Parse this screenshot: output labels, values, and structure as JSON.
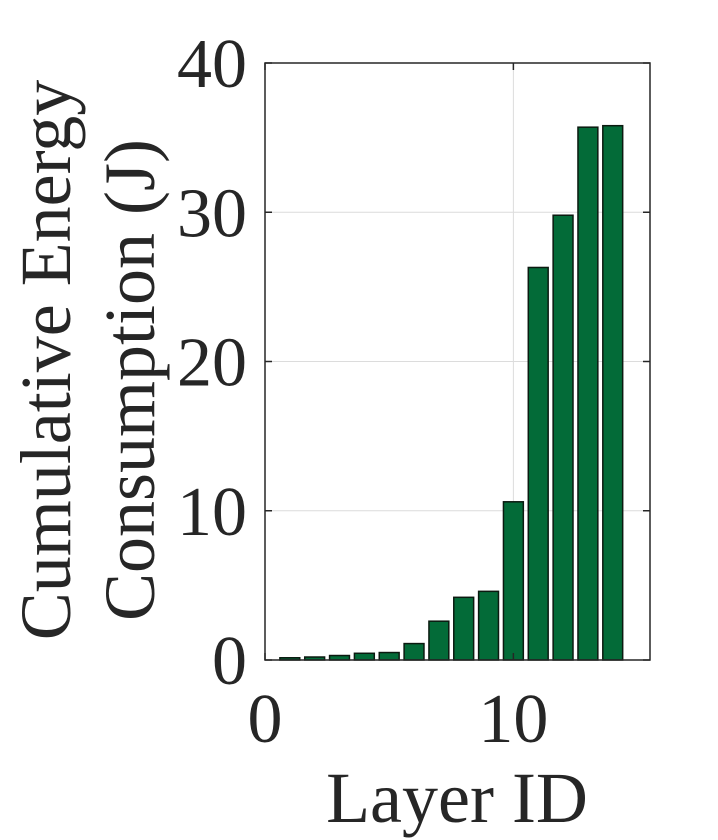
{
  "chart_data": {
    "type": "bar",
    "x": [
      1,
      2,
      3,
      4,
      5,
      6,
      7,
      8,
      9,
      10,
      11,
      12,
      13,
      14
    ],
    "values": [
      0.15,
      0.2,
      0.3,
      0.45,
      0.5,
      1.1,
      2.6,
      4.2,
      4.6,
      10.6,
      26.3,
      29.8,
      35.7,
      35.8
    ],
    "xlabel": "Layer ID",
    "ylabel_lines": [
      "Cumulative Energy",
      "Consumption (J)"
    ],
    "xlim": [
      0,
      15.5
    ],
    "ylim": [
      0,
      40
    ],
    "xticks": [
      0,
      10
    ],
    "yticks": [
      0,
      10,
      20,
      30,
      40
    ],
    "grid": true,
    "bar_color": "#036b38",
    "bar_edge_color": "#0b1a10"
  }
}
